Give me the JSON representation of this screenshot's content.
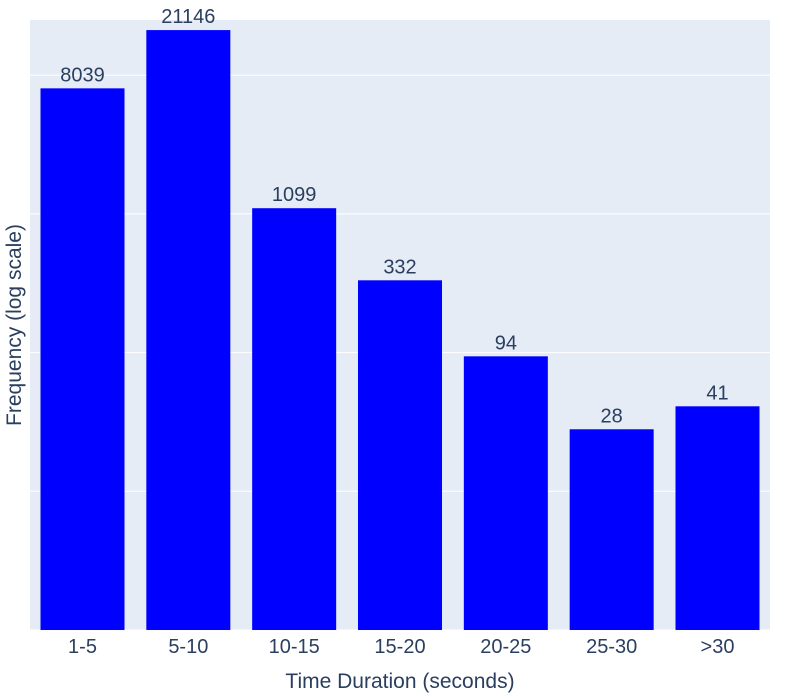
{
  "chart_data": {
    "type": "bar",
    "categories": [
      "1-5",
      "5-10",
      "10-15",
      "15-20",
      "20-25",
      "25-30",
      ">30"
    ],
    "values": [
      8039,
      21146,
      1099,
      332,
      94,
      28,
      41
    ],
    "data_labels": [
      "8039",
      "21146",
      "1099",
      "332",
      "94",
      "28",
      "41"
    ],
    "title": "",
    "xlabel": "Time Duration (seconds)",
    "ylabel": "Frequency (log scale)",
    "yscale": "log",
    "ylim": [
      1,
      25000
    ],
    "y_tick_labels_shown": false,
    "grid": true,
    "colors": {
      "bar": "#0000ff",
      "plot_background": "#e5ecf6",
      "page_background": "#ffffff",
      "gridline": "#ffffff",
      "text": "#2a3f5f"
    }
  }
}
